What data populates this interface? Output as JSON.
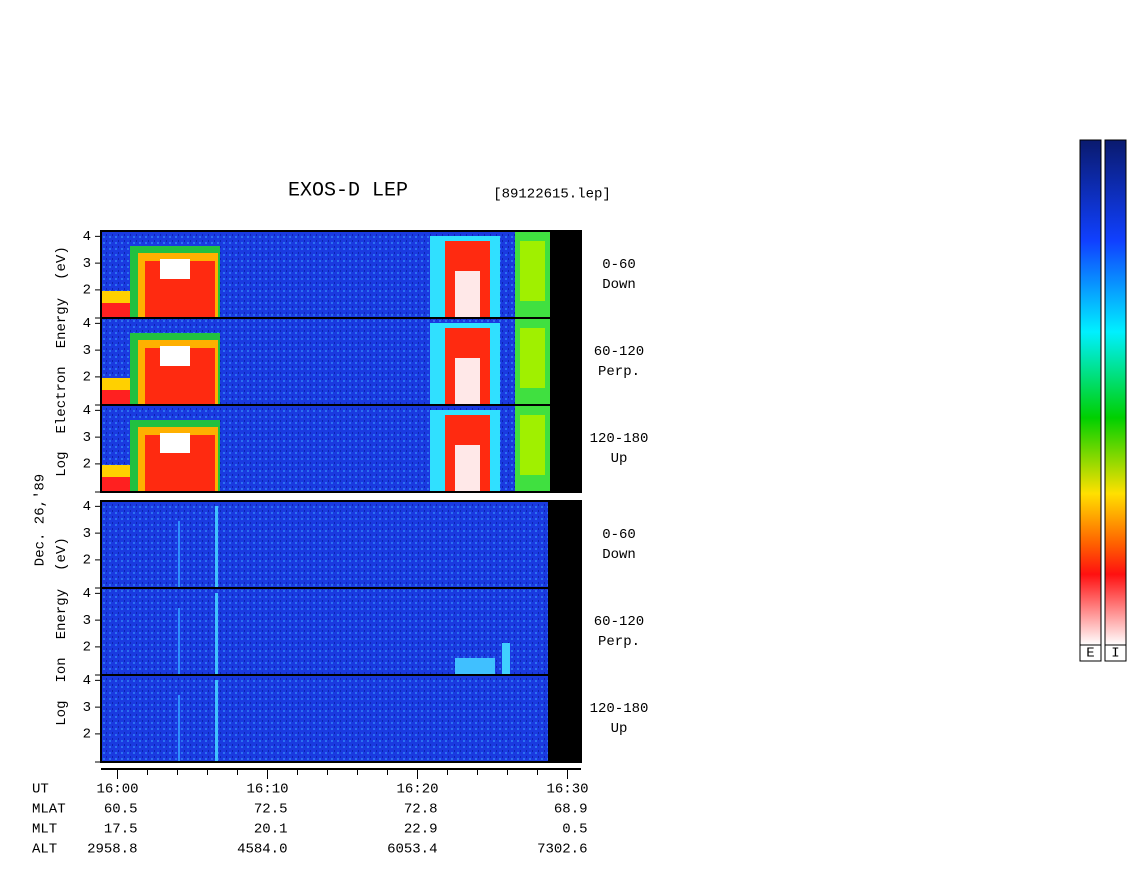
{
  "title": "EXOS-D LEP",
  "file": "[89122615.lep]",
  "date": "Dec. 26,'89",
  "species": [
    {
      "label": [
        "Log",
        "Electron",
        "Energy",
        "(eV)"
      ],
      "panels": [
        {
          "range": "0-60",
          "dir": "Down"
        },
        {
          "range": "60-120",
          "dir": "Perp."
        },
        {
          "range": "120-180",
          "dir": "Up"
        }
      ]
    },
    {
      "label": [
        "Log",
        "Ion",
        "Energy",
        "(eV)"
      ],
      "panels": [
        {
          "range": "0-60",
          "dir": "Down"
        },
        {
          "range": "60-120",
          "dir": "Perp."
        },
        {
          "range": "120-180",
          "dir": "Up"
        }
      ]
    }
  ],
  "ylim": [
    0.95,
    4.2
  ],
  "yticks": [
    2,
    3,
    4
  ],
  "xlim": [
    958.9,
    990.9
  ],
  "xticks": [
    {
      "value": 960,
      "label": "16:00"
    },
    {
      "value": 970,
      "label": "16:10"
    },
    {
      "value": 980,
      "label": "16:20"
    },
    {
      "value": 990,
      "label": "16:30"
    }
  ],
  "xminorticks": [
    962,
    964,
    966,
    968,
    972,
    974,
    976,
    978,
    982,
    984,
    986,
    988
  ],
  "orbit": {
    "time_label": "UT",
    "rows": [
      {
        "name": "MLAT",
        "values": [
          "60.5",
          "72.5",
          "72.8",
          "68.9"
        ]
      },
      {
        "name": "MLT",
        "values": [
          "17.5",
          "20.1",
          "22.9",
          "0.5"
        ]
      },
      {
        "name": "ALT",
        "values": [
          "2958.8",
          "4584.0",
          "6053.4",
          "7302.6"
        ]
      }
    ]
  },
  "colorbars": [
    "E",
    "I"
  ]
}
